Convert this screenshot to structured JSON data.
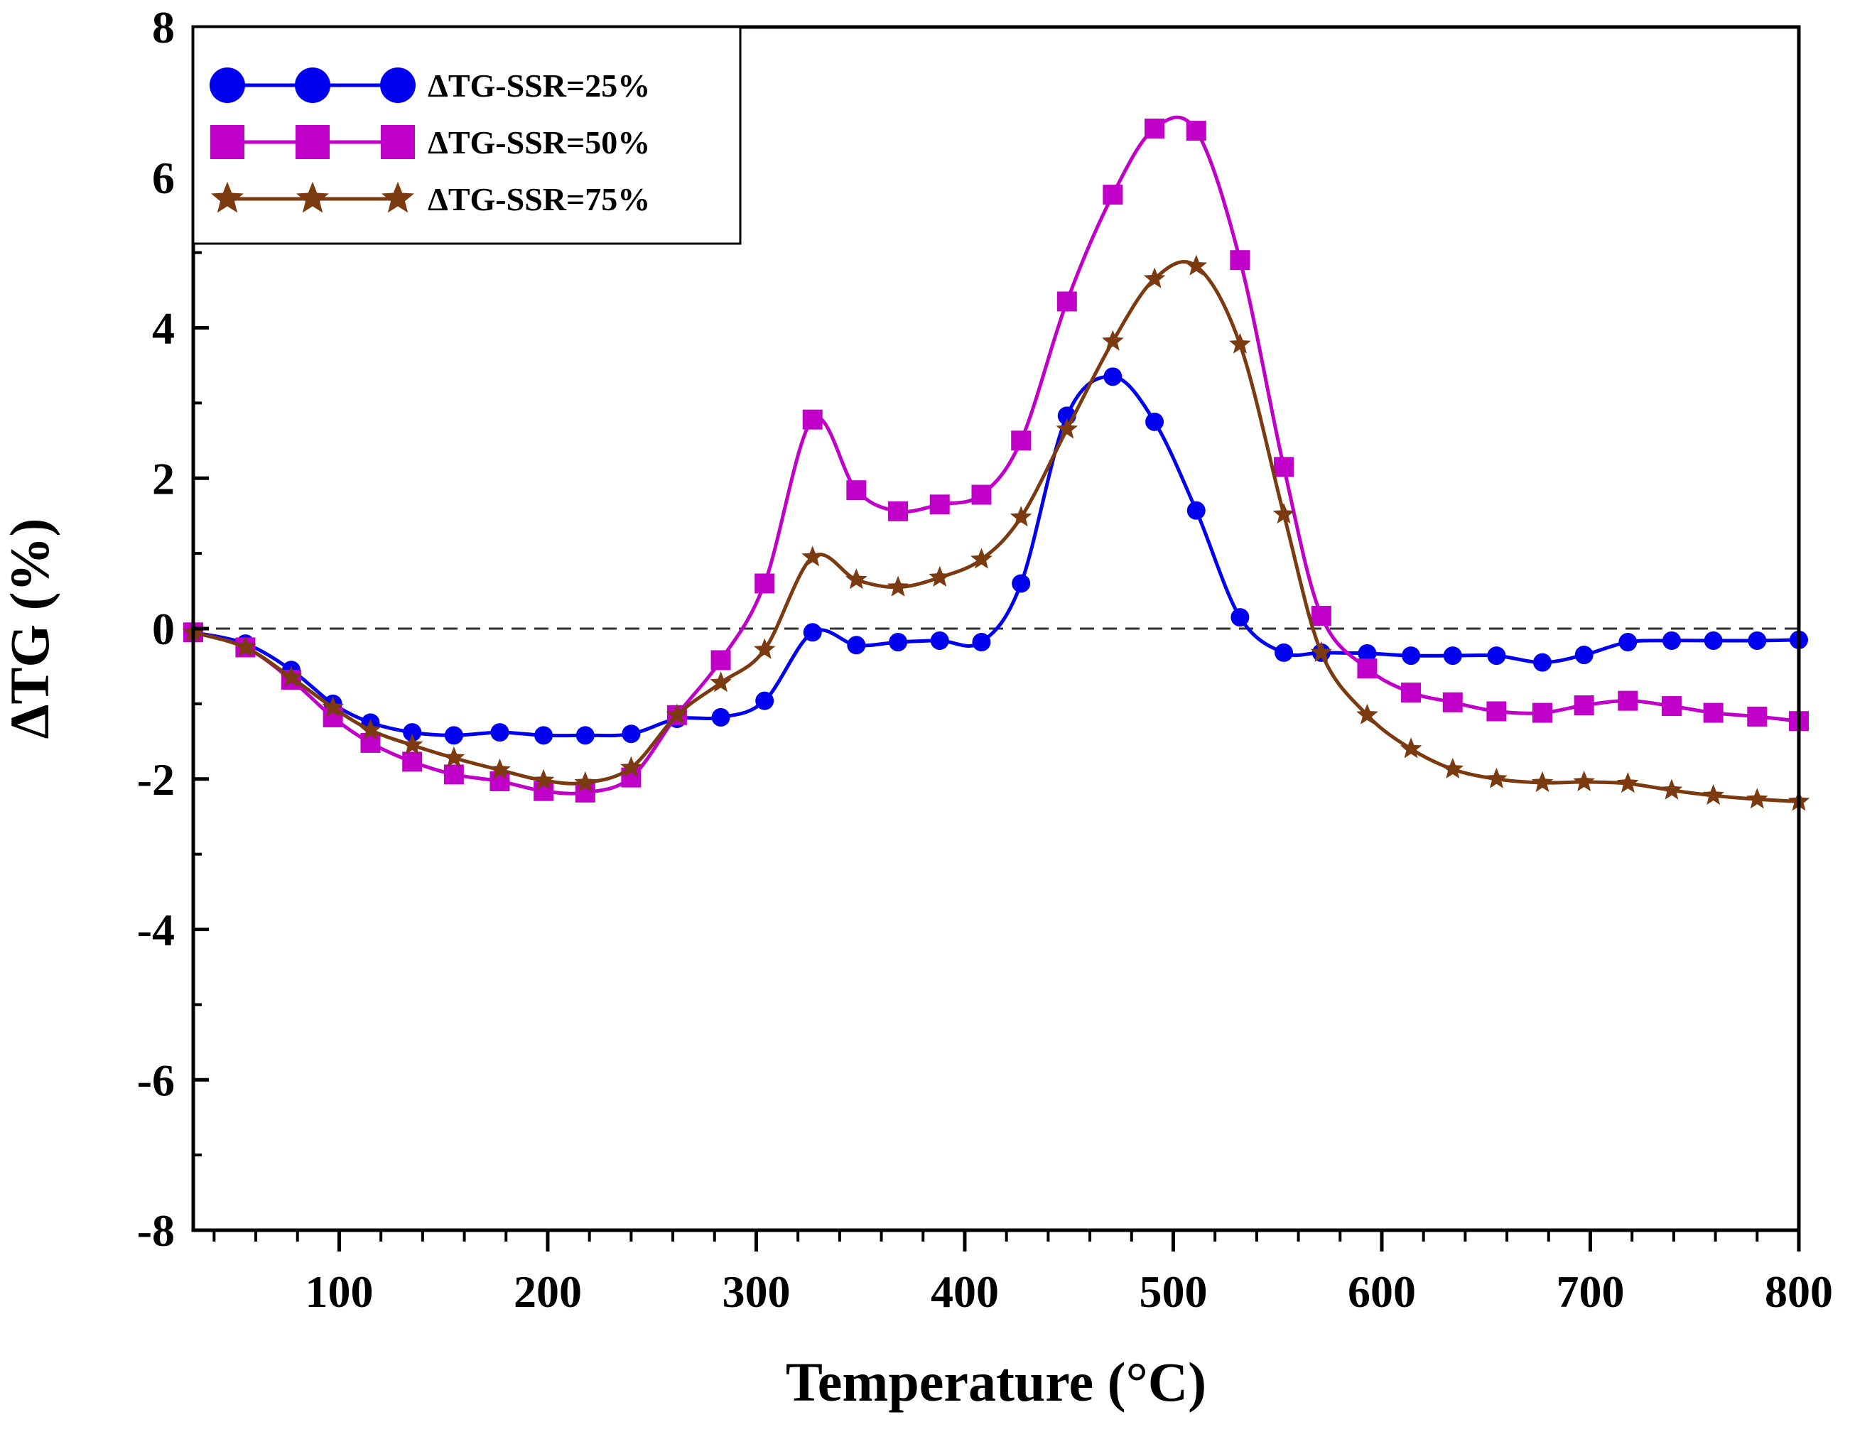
{
  "chart_data": {
    "type": "line",
    "title": "",
    "xlabel": "Temperature (°C)",
    "ylabel": "ΔTG (%)",
    "xlim": [
      30,
      800
    ],
    "ylim": [
      -8,
      8
    ],
    "x_ticks": [
      100,
      200,
      300,
      400,
      500,
      600,
      700,
      800
    ],
    "y_ticks": [
      -8,
      -6,
      -4,
      -2,
      0,
      2,
      4,
      6,
      8
    ],
    "reference_line_y": 0,
    "legend_position": "top-left",
    "series": [
      {
        "name": "ΔTG-SSR=25%",
        "color": "#0000ee",
        "marker": "circle",
        "x": [
          30,
          55,
          77,
          97,
          115,
          135,
          155,
          177,
          198,
          218,
          240,
          262,
          283,
          304,
          327,
          348,
          368,
          388,
          408,
          427,
          449,
          471,
          491,
          511,
          532,
          553,
          571,
          593,
          614,
          634,
          655,
          677,
          697,
          718,
          739,
          759,
          780,
          800
        ],
        "y": [
          -0.05,
          -0.2,
          -0.55,
          -1.0,
          -1.25,
          -1.38,
          -1.42,
          -1.38,
          -1.42,
          -1.42,
          -1.4,
          -1.2,
          -1.18,
          -0.96,
          -0.05,
          -0.22,
          -0.18,
          -0.16,
          -0.18,
          0.6,
          2.83,
          3.35,
          2.75,
          1.57,
          0.15,
          -0.32,
          -0.32,
          -0.33,
          -0.36,
          -0.36,
          -0.36,
          -0.45,
          -0.35,
          -0.18,
          -0.16,
          -0.16,
          -0.16,
          -0.15
        ]
      },
      {
        "name": "ΔTG-SSR=50%",
        "color": "#c000c8",
        "marker": "square",
        "x": [
          30,
          55,
          77,
          97,
          115,
          135,
          155,
          177,
          198,
          218,
          240,
          262,
          283,
          304,
          327,
          348,
          368,
          388,
          408,
          427,
          449,
          471,
          491,
          511,
          532,
          553,
          571,
          593,
          614,
          634,
          655,
          677,
          697,
          718,
          739,
          759,
          780,
          800
        ],
        "y": [
          -0.05,
          -0.25,
          -0.68,
          -1.18,
          -1.52,
          -1.77,
          -1.94,
          -2.03,
          -2.16,
          -2.18,
          -1.98,
          -1.15,
          -0.42,
          0.6,
          2.78,
          1.84,
          1.56,
          1.65,
          1.78,
          2.5,
          4.35,
          5.77,
          6.65,
          6.62,
          4.9,
          2.15,
          0.17,
          -0.53,
          -0.85,
          -0.98,
          -1.1,
          -1.12,
          -1.02,
          -0.96,
          -1.03,
          -1.12,
          -1.17,
          -1.23
        ]
      },
      {
        "name": "ΔTG-SSR=75%",
        "color": "#7b3a10",
        "marker": "star",
        "x": [
          30,
          55,
          77,
          97,
          115,
          135,
          155,
          177,
          198,
          218,
          240,
          262,
          283,
          304,
          327,
          348,
          368,
          388,
          408,
          427,
          449,
          471,
          491,
          511,
          532,
          553,
          571,
          593,
          614,
          634,
          655,
          677,
          697,
          718,
          739,
          759,
          780,
          800
        ],
        "y": [
          -0.05,
          -0.25,
          -0.65,
          -1.05,
          -1.35,
          -1.55,
          -1.72,
          -1.88,
          -2.02,
          -2.05,
          -1.85,
          -1.15,
          -0.72,
          -0.28,
          0.95,
          0.65,
          0.55,
          0.68,
          0.92,
          1.48,
          2.65,
          3.82,
          4.65,
          4.82,
          3.78,
          1.52,
          -0.32,
          -1.15,
          -1.6,
          -1.87,
          -2.0,
          -2.05,
          -2.04,
          -2.06,
          -2.15,
          -2.22,
          -2.27,
          -2.3
        ]
      }
    ]
  }
}
